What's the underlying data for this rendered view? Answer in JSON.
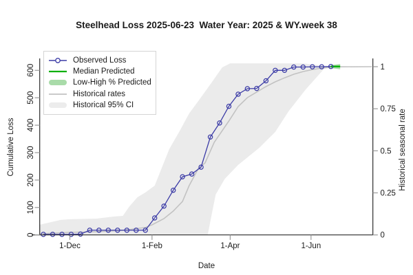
{
  "title": "Steelhead Loss 2025-06-23  Water Year: 2025 & WY.week 38",
  "colors": {
    "observed": "#3b3ba6",
    "median": "#00b000",
    "lowhigh": "#a9dba9",
    "historical": "#c2c2c2",
    "ci_fill": "#ebebeb",
    "axis": "#2a2a2a",
    "tick": "#9a9a9a",
    "text": "#1a1a1a"
  },
  "legend": {
    "items": [
      {
        "label": "Observed Loss"
      },
      {
        "label": "Median Predicted"
      },
      {
        "label": "Low-High % Predicted"
      },
      {
        "label": "Historical rates"
      },
      {
        "label": "Historical 95% CI"
      }
    ]
  },
  "chart_data": {
    "type": "line",
    "title": "Steelhead Loss 2025-06-23  Water Year: 2025 & WY.week 38",
    "x_axis": {
      "label": "Date",
      "tick_labels": [
        "1-Dec",
        "1-Feb",
        "1-Apr",
        "1-Jun"
      ],
      "tick_dates": [
        "2024-12-01",
        "2025-02-01",
        "2025-04-01",
        "2025-06-01"
      ]
    },
    "y_axis_left": {
      "label": "Cumulative Loss",
      "ticks": [
        0,
        100,
        200,
        300,
        400,
        500,
        600
      ],
      "range": [
        0,
        600
      ]
    },
    "y_axis_right": {
      "label": "Historical seasonal rate",
      "ticks": [
        0,
        0.25,
        0.5,
        0.75,
        1
      ],
      "tick_labels": [
        "0",
        "0.25",
        "0.5",
        "0.75",
        "1"
      ],
      "range": [
        0,
        1
      ]
    },
    "legend_position": "top-left",
    "series": [
      {
        "name": "Observed Loss",
        "axis": "left",
        "marker": "open-circle",
        "dates": [
          "2024-11-11",
          "2024-11-18",
          "2024-11-25",
          "2024-12-02",
          "2024-12-09",
          "2024-12-16",
          "2024-12-23",
          "2024-12-30",
          "2025-01-06",
          "2025-01-13",
          "2025-01-20",
          "2025-01-27",
          "2025-02-03",
          "2025-02-10",
          "2025-02-17",
          "2025-02-24",
          "2025-03-03",
          "2025-03-10",
          "2025-03-17",
          "2025-03-24",
          "2025-03-31",
          "2025-04-07",
          "2025-04-14",
          "2025-04-21",
          "2025-04-28",
          "2025-05-05",
          "2025-05-12",
          "2025-05-19",
          "2025-05-26",
          "2025-06-02",
          "2025-06-09",
          "2025-06-16"
        ],
        "values": [
          2,
          2,
          2,
          2,
          3,
          17,
          17,
          17,
          17,
          17,
          17,
          17,
          62,
          105,
          163,
          212,
          222,
          247,
          357,
          408,
          469,
          513,
          533,
          534,
          562,
          600,
          600,
          612,
          612,
          613,
          613,
          614
        ]
      },
      {
        "name": "Median Predicted",
        "axis": "left",
        "dates": [
          "2025-06-16",
          "2025-06-23"
        ],
        "values": [
          614,
          614
        ]
      },
      {
        "name": "Low-High % Predicted",
        "axis": "left",
        "dates": [
          "2025-06-16",
          "2025-06-23"
        ],
        "low": [
          608,
          604
        ],
        "high": [
          619,
          623
        ]
      },
      {
        "name": "Historical rates",
        "axis": "right",
        "dates": [
          "2024-11-08",
          "2024-12-01",
          "2024-12-21",
          "2025-01-10",
          "2025-01-27",
          "2025-02-01",
          "2025-02-10",
          "2025-02-17",
          "2025-02-24",
          "2025-03-01",
          "2025-03-08",
          "2025-03-13",
          "2025-03-20",
          "2025-03-31",
          "2025-04-07",
          "2025-04-14",
          "2025-04-21",
          "2025-04-28",
          "2025-05-05",
          "2025-05-12",
          "2025-05-19",
          "2025-05-26",
          "2025-06-02",
          "2025-06-09",
          "2025-06-16",
          "2025-06-23",
          "2025-07-17"
        ],
        "values": [
          0.007,
          0.015,
          0.019,
          0.027,
          0.044,
          0.06,
          0.097,
          0.142,
          0.199,
          0.293,
          0.395,
          0.428,
          0.551,
          0.677,
          0.763,
          0.816,
          0.849,
          0.882,
          0.91,
          0.934,
          0.955,
          0.971,
          0.983,
          0.992,
          0.996,
          0.999,
          1.0
        ]
      },
      {
        "name": "Historical 95% CI",
        "axis": "right",
        "upper": {
          "dates": [
            "2024-11-08",
            "2024-11-24",
            "2024-12-01",
            "2024-12-21",
            "2025-01-03",
            "2025-01-10",
            "2025-01-15",
            "2025-01-21",
            "2025-01-27",
            "2025-02-03",
            "2025-02-14",
            "2025-02-22",
            "2025-03-01",
            "2025-03-08",
            "2025-03-18",
            "2025-03-26",
            "2025-04-01",
            "2025-05-26",
            "2025-06-11",
            "2025-07-17"
          ],
          "values": [
            0.06,
            0.089,
            0.093,
            0.097,
            0.109,
            0.113,
            0.17,
            0.224,
            0.252,
            0.293,
            0.51,
            0.62,
            0.722,
            0.796,
            0.906,
            0.996,
            1.02,
            1.02,
            1.005,
            1.0
          ]
        },
        "lower": {
          "dates": [
            "2024-11-08",
            "2025-03-15",
            "2025-03-21",
            "2025-03-28",
            "2025-04-07",
            "2025-04-23",
            "2025-05-05",
            "2025-05-15",
            "2025-05-28",
            "2025-06-11",
            "2025-06-23",
            "2025-07-17"
          ],
          "values": [
            0.0,
            0.0,
            0.24,
            0.334,
            0.416,
            0.518,
            0.612,
            0.734,
            0.865,
            0.988,
            1.0,
            1.0
          ]
        }
      }
    ]
  }
}
